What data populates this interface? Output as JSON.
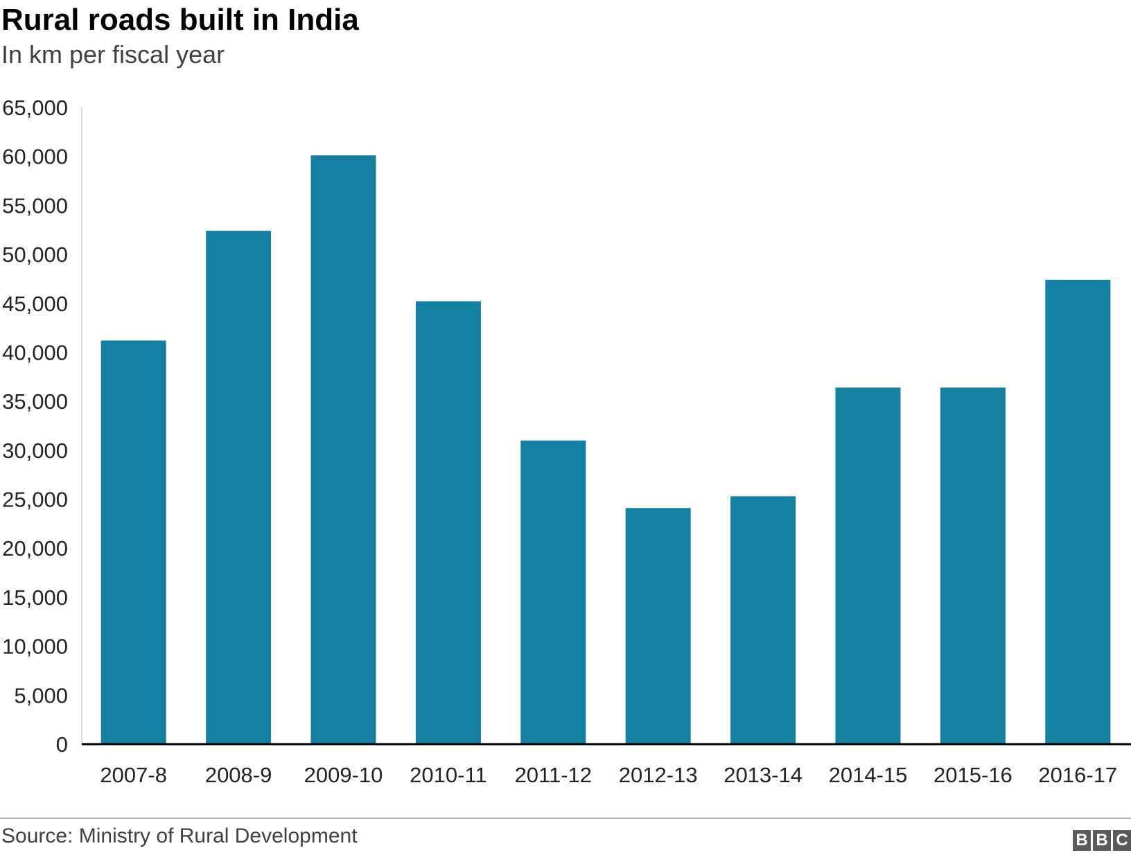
{
  "header": {
    "title": "Rural roads built in India",
    "subtitle": "In km per fiscal year"
  },
  "footer": {
    "source": "Source: Ministry of Rural Development",
    "logo": [
      "B",
      "B",
      "C"
    ]
  },
  "colors": {
    "bar": "#1380a1",
    "axis": "#000000",
    "grid_axis_left": "#cccccc",
    "text": "#222222"
  },
  "chart_data": {
    "type": "bar",
    "title": "Rural roads built in India",
    "subtitle": "In km per fiscal year",
    "xlabel": "",
    "ylabel": "",
    "categories": [
      "2007-8",
      "2008-9",
      "2009-10",
      "2010-11",
      "2011-12",
      "2012-13",
      "2013-14",
      "2014-15",
      "2015-16",
      "2016-17"
    ],
    "values": [
      41200,
      52400,
      60100,
      45200,
      31000,
      24100,
      25300,
      36400,
      36400,
      47400
    ],
    "ylim": [
      0,
      65000
    ],
    "yticks": [
      0,
      5000,
      10000,
      15000,
      20000,
      25000,
      30000,
      35000,
      40000,
      45000,
      50000,
      55000,
      60000,
      65000
    ],
    "ytick_labels": [
      "0",
      "5,000",
      "10,000",
      "15,000",
      "20,000",
      "25,000",
      "30,000",
      "35,000",
      "40,000",
      "45,000",
      "50,000",
      "55,000",
      "60,000",
      "65,000"
    ],
    "grid": false,
    "legend": "none"
  }
}
